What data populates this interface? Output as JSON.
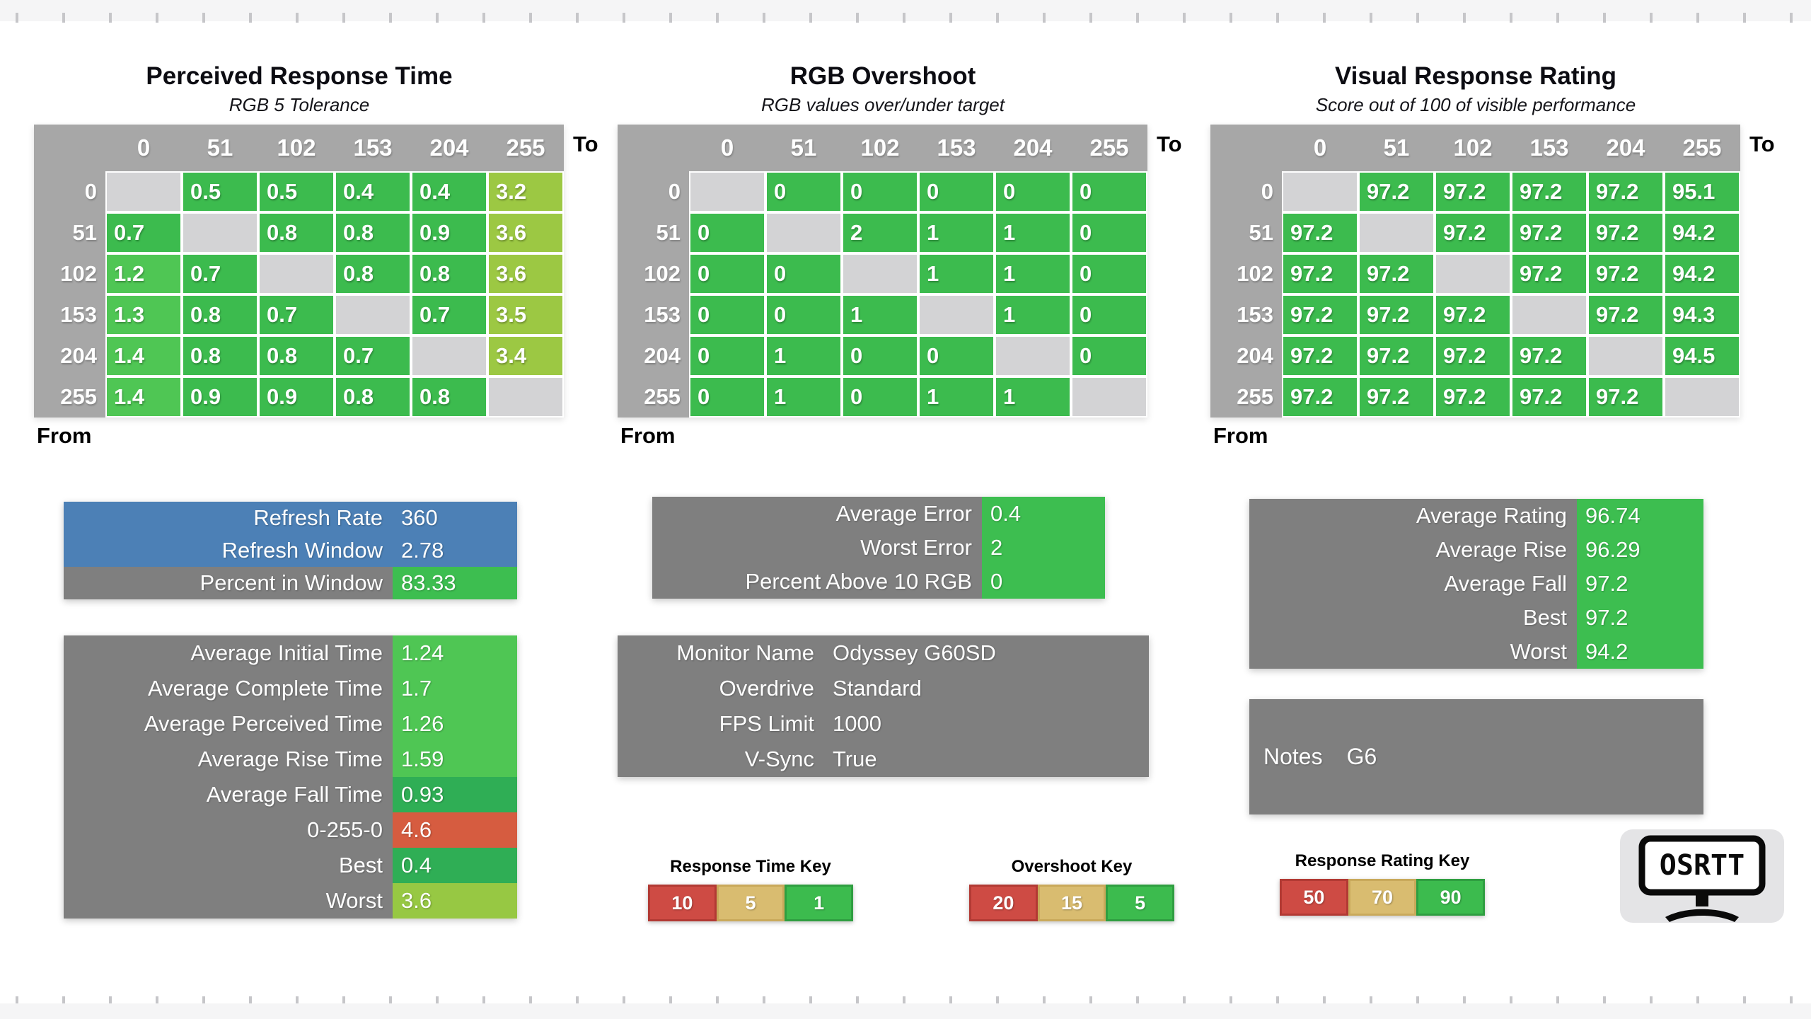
{
  "palette": {
    "g": "#3CBB4E",
    "gb": "#4FC654",
    "yg": "#9CC843",
    "diag": "#D3D3D5",
    "header_gray": "#A7A7A7",
    "label_gray": "#7F7F7F",
    "blue": "#4C80B6",
    "value_green": "#3DBE50",
    "green_bright": "#4FC654",
    "green_dark": "#2FAE55",
    "red_orange": "#D65C40",
    "yellow_green": "#97C843",
    "key_red": "#CE4B44",
    "key_red_border": "#B23A34",
    "key_tan": "#D9BC70",
    "key_tan_border": "#C9A95B",
    "key_green": "#3CBB4E",
    "key_green_border": "#2F9E41"
  },
  "tables": [
    {
      "title": "Perceived Response Time",
      "subtitle": "RGB 5 Tolerance",
      "to_label": "To",
      "from_label": "From",
      "levels": [
        "0",
        "51",
        "102",
        "153",
        "204",
        "255"
      ],
      "rows": [
        {
          "values": [
            null,
            "0.5",
            "0.5",
            "0.4",
            "0.4",
            "3.2"
          ],
          "colors": [
            "diag",
            "g",
            "g",
            "g",
            "g",
            "yg"
          ]
        },
        {
          "values": [
            "0.7",
            null,
            "0.8",
            "0.8",
            "0.9",
            "3.6"
          ],
          "colors": [
            "g",
            "diag",
            "g",
            "g",
            "g",
            "yg"
          ]
        },
        {
          "values": [
            "1.2",
            "0.7",
            null,
            "0.8",
            "0.8",
            "3.6"
          ],
          "colors": [
            "gb",
            "g",
            "diag",
            "g",
            "g",
            "yg"
          ]
        },
        {
          "values": [
            "1.3",
            "0.8",
            "0.7",
            null,
            "0.7",
            "3.5"
          ],
          "colors": [
            "gb",
            "g",
            "g",
            "diag",
            "g",
            "yg"
          ]
        },
        {
          "values": [
            "1.4",
            "0.8",
            "0.8",
            "0.7",
            null,
            "3.4"
          ],
          "colors": [
            "gb",
            "g",
            "g",
            "g",
            "diag",
            "yg"
          ]
        },
        {
          "values": [
            "1.4",
            "0.9",
            "0.9",
            "0.8",
            "0.8",
            null
          ],
          "colors": [
            "gb",
            "g",
            "g",
            "g",
            "g",
            "diag"
          ]
        }
      ]
    },
    {
      "title": "RGB Overshoot",
      "subtitle": "RGB values over/under target",
      "to_label": "To",
      "from_label": "From",
      "levels": [
        "0",
        "51",
        "102",
        "153",
        "204",
        "255"
      ],
      "rows": [
        {
          "values": [
            null,
            "0",
            "0",
            "0",
            "0",
            "0"
          ],
          "colors": [
            "diag",
            "g",
            "g",
            "g",
            "g",
            "g"
          ]
        },
        {
          "values": [
            "0",
            null,
            "2",
            "1",
            "1",
            "0"
          ],
          "colors": [
            "g",
            "diag",
            "g",
            "g",
            "g",
            "g"
          ]
        },
        {
          "values": [
            "0",
            "0",
            null,
            "1",
            "1",
            "0"
          ],
          "colors": [
            "g",
            "g",
            "diag",
            "g",
            "g",
            "g"
          ]
        },
        {
          "values": [
            "0",
            "0",
            "1",
            null,
            "1",
            "0"
          ],
          "colors": [
            "g",
            "g",
            "g",
            "diag",
            "g",
            "g"
          ]
        },
        {
          "values": [
            "0",
            "1",
            "0",
            "0",
            null,
            "0"
          ],
          "colors": [
            "g",
            "g",
            "g",
            "g",
            "diag",
            "g"
          ]
        },
        {
          "values": [
            "0",
            "1",
            "0",
            "1",
            "1",
            null
          ],
          "colors": [
            "g",
            "g",
            "g",
            "g",
            "g",
            "diag"
          ]
        }
      ]
    },
    {
      "title": "Visual Response Rating",
      "subtitle": "Score out of 100 of visible performance",
      "to_label": "To",
      "from_label": "From",
      "levels": [
        "0",
        "51",
        "102",
        "153",
        "204",
        "255"
      ],
      "rows": [
        {
          "values": [
            null,
            "97.2",
            "97.2",
            "97.2",
            "97.2",
            "95.1"
          ],
          "colors": [
            "diag",
            "g",
            "g",
            "g",
            "g",
            "g"
          ]
        },
        {
          "values": [
            "97.2",
            null,
            "97.2",
            "97.2",
            "97.2",
            "94.2"
          ],
          "colors": [
            "g",
            "diag",
            "g",
            "g",
            "g",
            "g"
          ]
        },
        {
          "values": [
            "97.2",
            "97.2",
            null,
            "97.2",
            "97.2",
            "94.2"
          ],
          "colors": [
            "g",
            "g",
            "diag",
            "g",
            "g",
            "g"
          ]
        },
        {
          "values": [
            "97.2",
            "97.2",
            "97.2",
            null,
            "97.2",
            "94.3"
          ],
          "colors": [
            "g",
            "g",
            "g",
            "diag",
            "g",
            "g"
          ]
        },
        {
          "values": [
            "97.2",
            "97.2",
            "97.2",
            "97.2",
            null,
            "94.5"
          ],
          "colors": [
            "g",
            "g",
            "g",
            "g",
            "diag",
            "g"
          ]
        },
        {
          "values": [
            "97.2",
            "97.2",
            "97.2",
            "97.2",
            "97.2",
            null
          ],
          "colors": [
            "g",
            "g",
            "g",
            "g",
            "g",
            "diag"
          ]
        }
      ]
    }
  ],
  "stat_boxes": [
    {
      "id": "refresh-stats",
      "rows": [
        {
          "label": "Refresh Rate",
          "value": "360",
          "label_bg": "blue",
          "value_bg": "blue"
        },
        {
          "label": "Refresh Window",
          "value": "2.78",
          "label_bg": "blue",
          "value_bg": "blue"
        },
        {
          "label": "Percent in Window",
          "value": "83.33",
          "label_bg": "label_gray",
          "value_bg": "value_green"
        }
      ]
    },
    {
      "id": "average-time-stats",
      "rows": [
        {
          "label": "Average Initial Time",
          "value": "1.24",
          "label_bg": "label_gray",
          "value_bg": "green_bright"
        },
        {
          "label": "Average Complete Time",
          "value": "1.7",
          "label_bg": "label_gray",
          "value_bg": "green_bright"
        },
        {
          "label": "Average Perceived Time",
          "value": "1.26",
          "label_bg": "label_gray",
          "value_bg": "green_bright"
        },
        {
          "label": "Average Rise Time",
          "value": "1.59",
          "label_bg": "label_gray",
          "value_bg": "green_bright"
        },
        {
          "label": "Average Fall Time",
          "value": "0.93",
          "label_bg": "label_gray",
          "value_bg": "green_dark"
        },
        {
          "label": "0-255-0",
          "value": "4.6",
          "label_bg": "label_gray",
          "value_bg": "red_orange"
        },
        {
          "label": "Best",
          "value": "0.4",
          "label_bg": "label_gray",
          "value_bg": "green_dark"
        },
        {
          "label": "Worst",
          "value": "3.6",
          "label_bg": "label_gray",
          "value_bg": "yellow_green"
        }
      ]
    },
    {
      "id": "error-stats",
      "rows": [
        {
          "label": "Average Error",
          "value": "0.4",
          "label_bg": "label_gray",
          "value_bg": "value_green"
        },
        {
          "label": "Worst Error",
          "value": "2",
          "label_bg": "label_gray",
          "value_bg": "value_green"
        },
        {
          "label": "Percent Above 10 RGB",
          "value": "0",
          "label_bg": "label_gray",
          "value_bg": "value_green"
        }
      ]
    },
    {
      "id": "monitor-info",
      "rows": [
        {
          "label": "Monitor Name",
          "value": "Odyssey G60SD",
          "label_bg": "label_gray",
          "value_bg": "label_gray"
        },
        {
          "label": "Overdrive",
          "value": "Standard",
          "label_bg": "label_gray",
          "value_bg": "label_gray"
        },
        {
          "label": "FPS Limit",
          "value": "1000",
          "label_bg": "label_gray",
          "value_bg": "label_gray"
        },
        {
          "label": "V-Sync",
          "value": "True",
          "label_bg": "label_gray",
          "value_bg": "label_gray"
        }
      ]
    },
    {
      "id": "rating-stats",
      "rows": [
        {
          "label": "Average Rating",
          "value": "96.74",
          "label_bg": "label_gray",
          "value_bg": "value_green"
        },
        {
          "label": "Average Rise",
          "value": "96.29",
          "label_bg": "label_gray",
          "value_bg": "value_green"
        },
        {
          "label": "Average Fall",
          "value": "97.2",
          "label_bg": "label_gray",
          "value_bg": "value_green"
        },
        {
          "label": "Best",
          "value": "97.2",
          "label_bg": "label_gray",
          "value_bg": "value_green"
        },
        {
          "label": "Worst",
          "value": "94.2",
          "label_bg": "label_gray",
          "value_bg": "value_green"
        }
      ]
    }
  ],
  "notes": {
    "label": "Notes",
    "value": "G6"
  },
  "keys": [
    {
      "id": "key-response-time",
      "title": "Response Time Key",
      "cells": [
        {
          "value": "10",
          "bg": "key_red",
          "border": "key_red_border"
        },
        {
          "value": "5",
          "bg": "key_tan",
          "border": "key_tan_border"
        },
        {
          "value": "1",
          "bg": "key_green",
          "border": "key_green_border"
        }
      ]
    },
    {
      "id": "key-overshoot",
      "title": "Overshoot Key",
      "cells": [
        {
          "value": "20",
          "bg": "key_red",
          "border": "key_red_border"
        },
        {
          "value": "15",
          "bg": "key_tan",
          "border": "key_tan_border"
        },
        {
          "value": "5",
          "bg": "key_green",
          "border": "key_green_border"
        }
      ]
    },
    {
      "id": "key-response-rating",
      "title": "Response Rating Key",
      "cells": [
        {
          "value": "50",
          "bg": "key_red",
          "border": "key_red_border"
        },
        {
          "value": "70",
          "bg": "key_tan",
          "border": "key_tan_border"
        },
        {
          "value": "90",
          "bg": "key_green",
          "border": "key_green_border"
        }
      ]
    }
  ],
  "logo": {
    "text": "OSRTT"
  }
}
